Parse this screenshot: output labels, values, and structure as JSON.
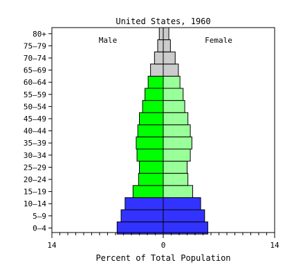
{
  "chart_data": {
    "type": "bar",
    "orientation": "horizontal-population-pyramid",
    "title": "United States, 1960",
    "xlabel": "Percent of Total Population",
    "ylabel": "",
    "xlim": [
      -14,
      14
    ],
    "x_tick_labels": [
      "14",
      "0",
      "14"
    ],
    "x_tick_values": [
      -14,
      0,
      14
    ],
    "grid": false,
    "categories": [
      "0–4",
      "5–9",
      "10–14",
      "15–19",
      "20–24",
      "25–29",
      "30–34",
      "35–39",
      "40–44",
      "45–49",
      "50–54",
      "55–59",
      "60–64",
      "65–69",
      "70–74",
      "75–79",
      "80+"
    ],
    "series": [
      {
        "name": "Male",
        "side": "left",
        "values": [
          5.8,
          5.3,
          4.8,
          3.8,
          3.1,
          3.0,
          3.3,
          3.4,
          3.2,
          3.0,
          2.6,
          2.3,
          1.9,
          1.6,
          1.1,
          0.7,
          0.5
        ]
      },
      {
        "name": "Female",
        "side": "right",
        "values": [
          5.6,
          5.2,
          4.7,
          3.7,
          3.1,
          3.0,
          3.4,
          3.6,
          3.4,
          3.1,
          2.7,
          2.5,
          2.1,
          1.9,
          1.5,
          0.9,
          0.7
        ]
      }
    ],
    "colors": {
      "youth_bar": "#3333ff",
      "working_male": "#00ff00",
      "working_female": "#99ff99",
      "elderly": "#cccccc",
      "outline": "#000000"
    }
  }
}
